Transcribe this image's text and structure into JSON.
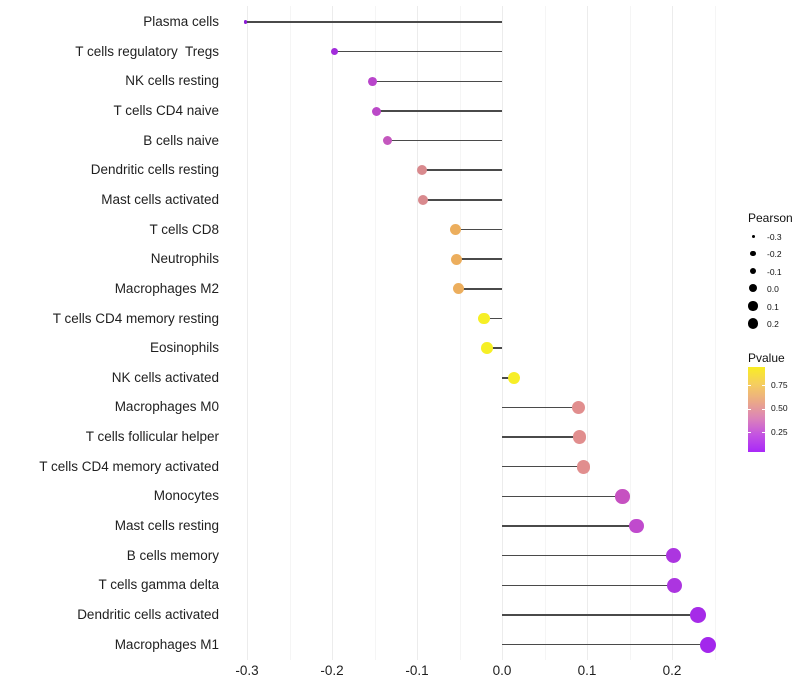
{
  "chart_data": {
    "type": "scatter",
    "subtype": "lollipop",
    "title": "",
    "xlabel": "",
    "ylabel": "",
    "grid": "vertical gridlines every 0.05, no panel border, white background",
    "legend_position": "right",
    "xlim": [
      -0.3225,
      0.2525
    ],
    "x_ticks": [
      "-0.3",
      "-0.2",
      "-0.1",
      "0.0",
      "0.1",
      "0.2"
    ],
    "x_tick_values": [
      -0.3,
      -0.2,
      -0.1,
      0.0,
      0.1,
      0.2
    ],
    "categories": [
      "Plasma cells",
      "T cells regulatory  Tregs",
      "NK cells resting",
      "T cells CD4 naive",
      "B cells naive",
      "Dendritic cells resting",
      "Mast cells activated",
      "T cells CD8",
      "Neutrophils",
      "Macrophages M2",
      "T cells CD4 memory resting",
      "Eosinophils",
      "NK cells activated",
      "Macrophages M0",
      "T cells follicular helper",
      "T cells CD4 memory activated",
      "Monocytes",
      "Mast cells resting",
      "B cells memory",
      "T cells gamma delta",
      "Dendritic cells activated",
      "Macrophages M1"
    ],
    "series": [
      {
        "name": "Pearson",
        "values": [
          -0.302,
          -0.197,
          -0.152,
          -0.148,
          -0.135,
          -0.094,
          -0.093,
          -0.055,
          -0.053,
          -0.051,
          -0.021,
          -0.018,
          0.014,
          0.09,
          0.091,
          0.096,
          0.142,
          0.158,
          0.202,
          0.203,
          0.231,
          0.242
        ]
      },
      {
        "name": "Pvalue (estimated from color)",
        "values": [
          0.05,
          0.12,
          0.25,
          0.26,
          0.3,
          0.5,
          0.5,
          0.65,
          0.65,
          0.65,
          0.85,
          0.85,
          0.85,
          0.5,
          0.5,
          0.5,
          0.28,
          0.24,
          0.15,
          0.15,
          0.1,
          0.09
        ]
      }
    ],
    "point_colors": [
      "#8B1BD6",
      "#A22CDB",
      "#B945CB",
      "#BB49C8",
      "#C457BE",
      "#D98A8E",
      "#D98A8E",
      "#ECAE5D",
      "#ECAE5D",
      "#ECAE5D",
      "#F6EF25",
      "#F6EF25",
      "#F7EE27",
      "#E18E8E",
      "#E18E8E",
      "#E18E8E",
      "#C651C1",
      "#C04ACD",
      "#AC35E0",
      "#AC35E0",
      "#A62BE8",
      "#A327EC"
    ]
  },
  "legends": {
    "pearson": {
      "title": "Pearson",
      "entries": [
        {
          "label": "-0.3",
          "value": -0.3
        },
        {
          "label": "-0.2",
          "value": -0.2
        },
        {
          "label": "-0.1",
          "value": -0.1
        },
        {
          "label": "0.0",
          "value": 0.0
        },
        {
          "label": "0.1",
          "value": 0.1
        },
        {
          "label": "0.2",
          "value": 0.2
        }
      ]
    },
    "pvalue": {
      "title": "Pvalue",
      "tick_labels": [
        "0.75",
        "0.50",
        "0.25"
      ],
      "gradient_top_to_bottom": [
        "#F9ED23",
        "#F5CE5F",
        "#EBAA86",
        "#DC84B8",
        "#C353E2",
        "#A928F8"
      ]
    }
  },
  "colors": {
    "stem": "#4a4a4a",
    "axis_text": "#1f1f1f",
    "grid_major": "#ececec",
    "grid_minor": "#f5f5f5",
    "background": "#ffffff",
    "legend_dot": "#000000"
  }
}
